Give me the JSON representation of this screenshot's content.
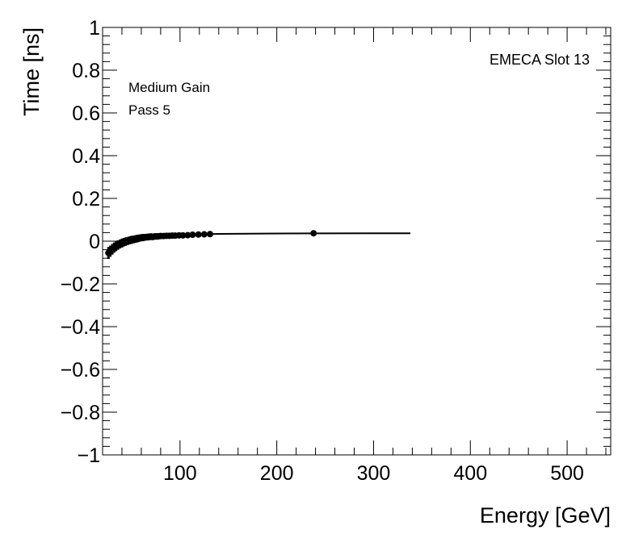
{
  "chart_data": {
    "type": "scatter",
    "title": "",
    "xlabel": "Energy [GeV]",
    "ylabel": "Time [ns]",
    "xlim": [
      20,
      545
    ],
    "ylim": [
      -1,
      1
    ],
    "xticks": [
      100,
      200,
      300,
      400,
      500
    ],
    "yticks": [
      -1,
      -0.8,
      -0.6,
      -0.4,
      -0.2,
      0,
      0.2,
      0.4,
      0.6,
      0.8,
      1
    ],
    "xtick_labels": [
      "100",
      "200",
      "300",
      "400",
      "500"
    ],
    "ytick_labels": [
      "−1",
      "−0.8",
      "−0.6",
      "−0.4",
      "−0.2",
      "0",
      "0.2",
      "0.4",
      "0.6",
      "0.8",
      "1"
    ],
    "grid": false,
    "annotations": [
      "Medium Gain",
      "Pass 5"
    ],
    "label_top_right": "EMECA Slot 13",
    "colors": {
      "points": "#000000",
      "fit": "#000000",
      "axes": "#000000"
    },
    "fit_line": {
      "x": [
        26,
        30,
        35,
        40,
        45,
        50,
        55,
        60,
        65,
        70,
        80,
        90,
        100,
        110,
        120,
        130,
        140,
        200,
        300,
        338
      ],
      "y": [
        -0.052,
        -0.036,
        -0.022,
        -0.012,
        -0.003,
        0.004,
        0.009,
        0.013,
        0.016,
        0.019,
        0.023,
        0.026,
        0.028,
        0.03,
        0.032,
        0.033,
        0.034,
        0.036,
        0.037,
        0.037
      ]
    },
    "points": {
      "x": [
        26,
        28,
        30,
        32,
        34,
        36,
        38,
        40,
        42,
        44,
        46,
        48,
        50,
        52,
        54,
        56,
        58,
        60,
        62,
        64,
        66,
        68,
        70,
        72,
        74,
        76,
        78,
        80,
        83,
        86,
        89,
        92,
        95,
        99,
        103,
        108,
        113,
        119,
        125,
        131,
        238
      ],
      "y": [
        -0.055,
        -0.047,
        -0.038,
        -0.03,
        -0.024,
        -0.018,
        -0.013,
        -0.009,
        -0.005,
        -0.002,
        0.001,
        0.004,
        0.006,
        0.008,
        0.01,
        0.012,
        0.014,
        0.016,
        0.017,
        0.018,
        0.019,
        0.02,
        0.021,
        0.02,
        0.022,
        0.022,
        0.023,
        0.024,
        0.024,
        0.025,
        0.025,
        0.026,
        0.026,
        0.027,
        0.027,
        0.028,
        0.03,
        0.031,
        0.032,
        0.033,
        0.037
      ],
      "yerr": [
        0.028,
        0.026,
        0.025,
        0.024,
        0.023,
        0.022,
        0.021,
        0.021,
        0.02,
        0.02,
        0.019,
        0.019,
        0.019,
        0.018,
        0.018,
        0.018,
        0.017,
        0.017,
        0.017,
        0.016,
        0.016,
        0.016,
        0.016,
        0.015,
        0.015,
        0.015,
        0.014,
        0.014,
        0.013,
        0.012,
        0.011,
        0.01,
        0.009,
        0.008,
        0.007,
        0.006,
        0.006,
        0.005,
        0.005,
        0.004,
        0.004
      ]
    }
  }
}
